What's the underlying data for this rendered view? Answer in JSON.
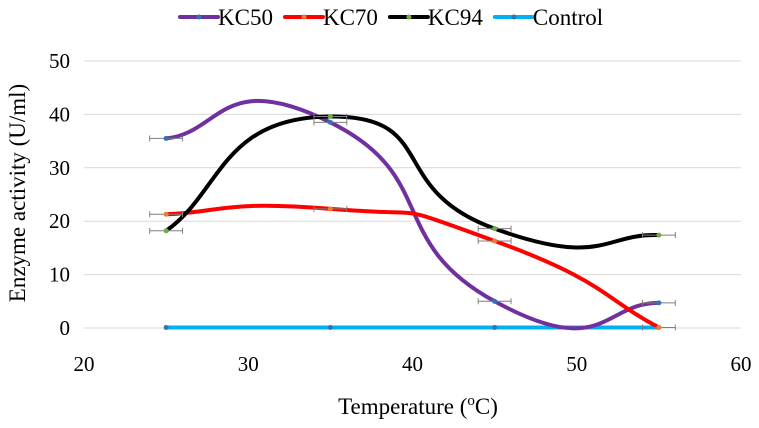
{
  "chart_data": {
    "type": "line",
    "smooth": true,
    "title": "",
    "xlabel": "Temperature (oC)",
    "xlabel_main": "Temperature (",
    "xlabel_sup": "o",
    "xlabel_end": "C)",
    "ylabel": "Enzyme activity (U/ml)",
    "xlim": [
      20,
      60
    ],
    "ylim": [
      0,
      50
    ],
    "xticks": [
      20,
      30,
      40,
      50,
      60
    ],
    "yticks": [
      0,
      10,
      20,
      30,
      40,
      50
    ],
    "grid": "horizontal",
    "legend": "top",
    "x": [
      25,
      35,
      45,
      55
    ],
    "series": [
      {
        "name": "KC50",
        "color": "#7030a0",
        "marker_color": "#2e75b6",
        "values": [
          35.5,
          38.5,
          5.0,
          4.7
        ],
        "error_x": 1.0
      },
      {
        "name": "KC70",
        "color": "#ff0000",
        "marker_color": "#ed7d31",
        "values": [
          21.3,
          22.3,
          16.3,
          0.1
        ],
        "error_x": 1.0
      },
      {
        "name": "KC94",
        "color": "#000000",
        "marker_color": "#70ad47",
        "values": [
          18.2,
          39.6,
          18.6,
          17.4
        ],
        "error_x": 1.0
      },
      {
        "name": "Control",
        "color": "#00b0f0",
        "marker_color": "#2e75b6",
        "values": [
          0.1,
          0.1,
          0.1,
          0.1
        ],
        "error_x": 0
      }
    ]
  }
}
